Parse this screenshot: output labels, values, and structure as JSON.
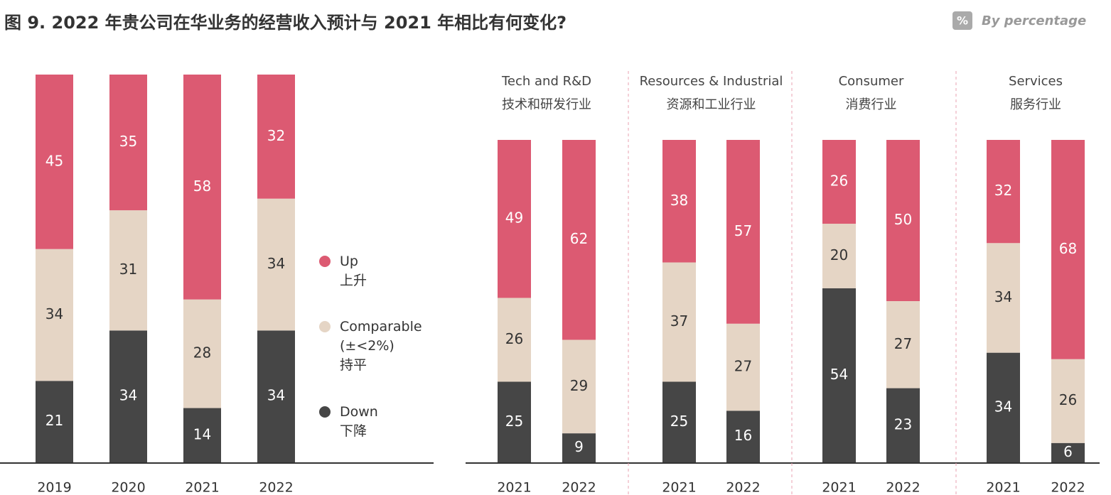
{
  "header": {
    "title": "图 9. 2022 年贵公司在华业务的经营收入预计与 2021 年相比有何变化?",
    "badge": "%",
    "unit_note": "By percentage"
  },
  "chart_data": [
    {
      "type": "stacked_bar",
      "categories": [
        "2019",
        "2020",
        "2021",
        "2022"
      ],
      "ylim": [
        0,
        100
      ],
      "series": [
        {
          "name": "Down\n下降",
          "color": "#464646",
          "label_color": "#ffffff",
          "values": [
            21,
            34,
            14,
            34
          ]
        },
        {
          "name": "Comparable\n(±<2%)\n持平",
          "color": "#e5d5c5",
          "label_color": "#333333",
          "values": [
            34,
            31,
            28,
            34
          ]
        },
        {
          "name": "Up\n上升",
          "color": "#dc5a72",
          "label_color": "#ffffff",
          "values": [
            45,
            35,
            58,
            32
          ]
        }
      ]
    },
    {
      "type": "grouped_stacked_bar",
      "ylim": [
        0,
        100
      ],
      "colors": [
        "#464646",
        "#e5d5c5",
        "#dc5a72"
      ],
      "label_colors": [
        "#ffffff",
        "#333333",
        "#ffffff"
      ],
      "groups": [
        {
          "name": "Tech and R&D\n技术和研发行业",
          "categories": [
            "2021",
            "2022"
          ],
          "stacks": [
            [
              25,
              26,
              49
            ],
            [
              9,
              29,
              62
            ]
          ]
        },
        {
          "name": "Resources & Industrial\n资源和工业行业",
          "categories": [
            "2021",
            "2022"
          ],
          "stacks": [
            [
              25,
              37,
              38
            ],
            [
              16,
              27,
              57
            ]
          ]
        },
        {
          "name": "Consumer\n消费行业",
          "categories": [
            "2021",
            "2022"
          ],
          "stacks": [
            [
              54,
              20,
              26
            ],
            [
              23,
              27,
              50
            ]
          ]
        },
        {
          "name": "Services\n服务行业",
          "categories": [
            "2021",
            "2022"
          ],
          "stacks": [
            [
              34,
              34,
              32
            ],
            [
              6,
              26,
              68
            ]
          ]
        }
      ]
    }
  ]
}
